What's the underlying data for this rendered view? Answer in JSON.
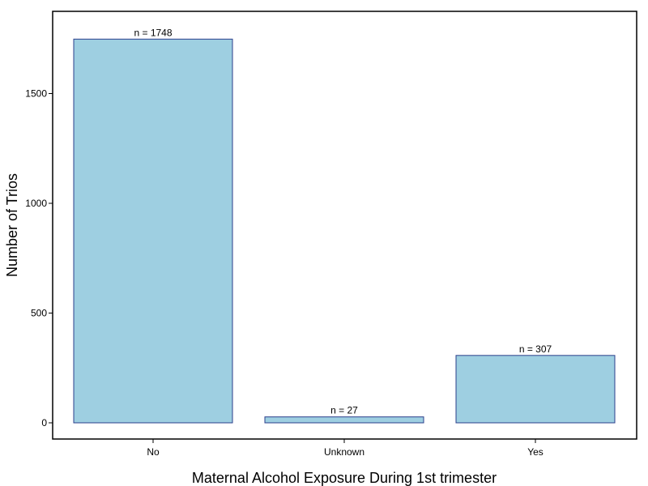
{
  "chart_data": {
    "type": "bar",
    "categories": [
      "No",
      "Unknown",
      "Yes"
    ],
    "values": [
      1748,
      27,
      307
    ],
    "data_labels": [
      "n =  1748",
      "n =  27",
      "n =  307"
    ],
    "xlabel": "Maternal Alcohol Exposure During 1st trimester",
    "ylabel": "Number of Trios",
    "yticks": [
      0,
      500,
      1000,
      1500
    ],
    "ytick_labels": [
      "0",
      "500",
      "1000",
      "1500"
    ],
    "ylim": [
      -75,
      1860
    ],
    "grid": false,
    "colors": {
      "bar_fill": "#9ecfe1",
      "bar_stroke": "#2b3f8c",
      "frame": "#000000"
    }
  }
}
